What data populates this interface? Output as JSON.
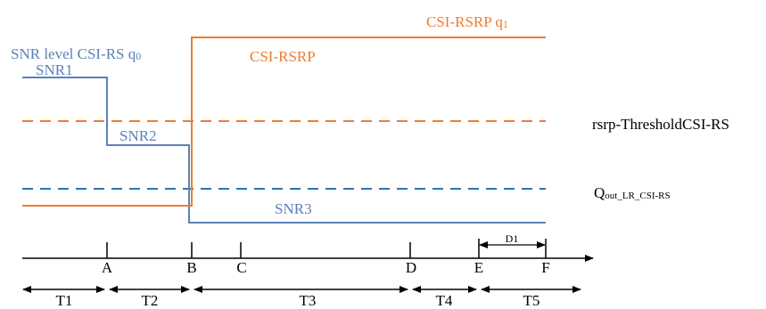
{
  "colors": {
    "snr": "#5a82b8",
    "rsrp": "#ed7d31",
    "rsrp_threshold": "#ed7d31",
    "qout_threshold": "#2e75b6",
    "axis": "#000000"
  },
  "labels": {
    "snr_title_main": "SNR level CSI-RS q",
    "snr_title_sub": "0",
    "rsrp_title_main": "CSI-RSRP q",
    "rsrp_title_sub": "1",
    "rsrp_curve": "CSI-RSRP",
    "snr1": "SNR1",
    "snr2": "SNR2",
    "snr3": "SNR3",
    "rsrp_threshold": "rsrp-ThresholdCSI-RS",
    "qout_main": "Q",
    "qout_sub": "out_LR_CSI-RS"
  },
  "time_axis": {
    "points": [
      "A",
      "B",
      "C",
      "D",
      "E",
      "F"
    ],
    "intervals": [
      "T1",
      "T2",
      "T3",
      "T4",
      "T5"
    ],
    "duration_label": "D1"
  }
}
